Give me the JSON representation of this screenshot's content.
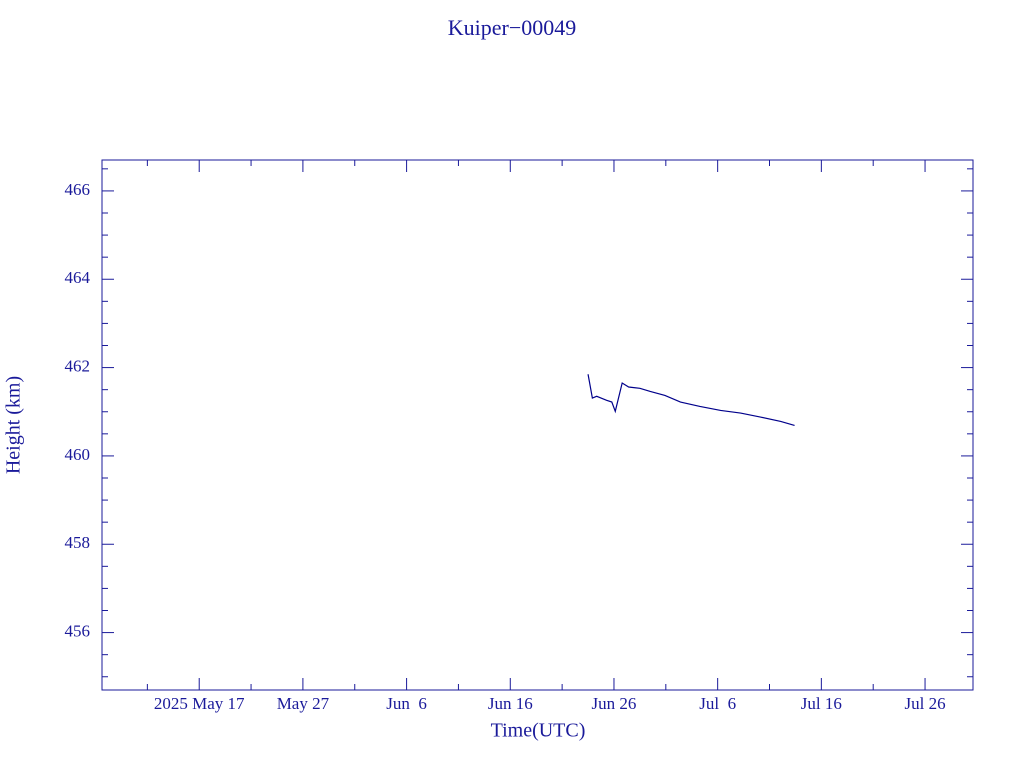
{
  "chart_data": {
    "type": "line",
    "title": "Kuiper−00049",
    "x_label": "Time(UTC)",
    "y_label": "Height (km)",
    "color": "#00008b",
    "x": [
      "2025-06-23T12:00",
      "2025-06-23T22:00",
      "2025-06-24T08:00",
      "2025-06-25T07:00",
      "2025-06-25T19:00",
      "2025-06-26T03:00",
      "2025-06-26T19:00",
      "2025-06-27T10:00",
      "2025-06-28T12:00",
      "2025-06-29T12:00",
      "2025-06-30T22:00",
      "2025-07-02T10:00",
      "2025-07-04T07:00",
      "2025-07-06T07:00",
      "2025-07-08T05:00",
      "2025-07-10T03:00",
      "2025-07-12T02:00",
      "2025-07-13T10:00"
    ],
    "values": [
      461.85,
      461.31,
      461.35,
      461.26,
      461.22,
      461.01,
      461.65,
      461.56,
      461.53,
      461.46,
      461.37,
      461.22,
      461.12,
      461.03,
      460.97,
      460.88,
      460.78,
      460.69
    ],
    "xlim": [
      "2025-05-07T15:00",
      "2025-07-30T15:00"
    ],
    "xticks": [
      {
        "value": "2025-05-17",
        "label": "2025 May 17"
      },
      {
        "value": "2025-05-27",
        "label": "May 27"
      },
      {
        "value": "2025-06-06",
        "label": "Jun  6"
      },
      {
        "value": "2025-06-16",
        "label": "Jun 16"
      },
      {
        "value": "2025-06-26",
        "label": "Jun 26"
      },
      {
        "value": "2025-07-06",
        "label": "Jul  6"
      },
      {
        "value": "2025-07-16",
        "label": "Jul 16"
      },
      {
        "value": "2025-07-26",
        "label": "Jul 26"
      }
    ],
    "xminorticks": [
      "2025-05-12",
      "2025-05-22",
      "2025-06-01",
      "2025-06-11",
      "2025-06-21",
      "2025-07-01",
      "2025-07-11",
      "2025-07-21"
    ],
    "ylim": [
      454.7,
      466.7
    ],
    "yticks": [
      456,
      458,
      460,
      462,
      464,
      466
    ],
    "yminorticks": [
      455,
      455.5,
      456.5,
      457,
      457.5,
      458.5,
      459,
      459.5,
      460.5,
      461,
      461.5,
      462.5,
      463,
      463.5,
      464.5,
      465,
      465.5,
      466.5
    ],
    "grid": false
  }
}
